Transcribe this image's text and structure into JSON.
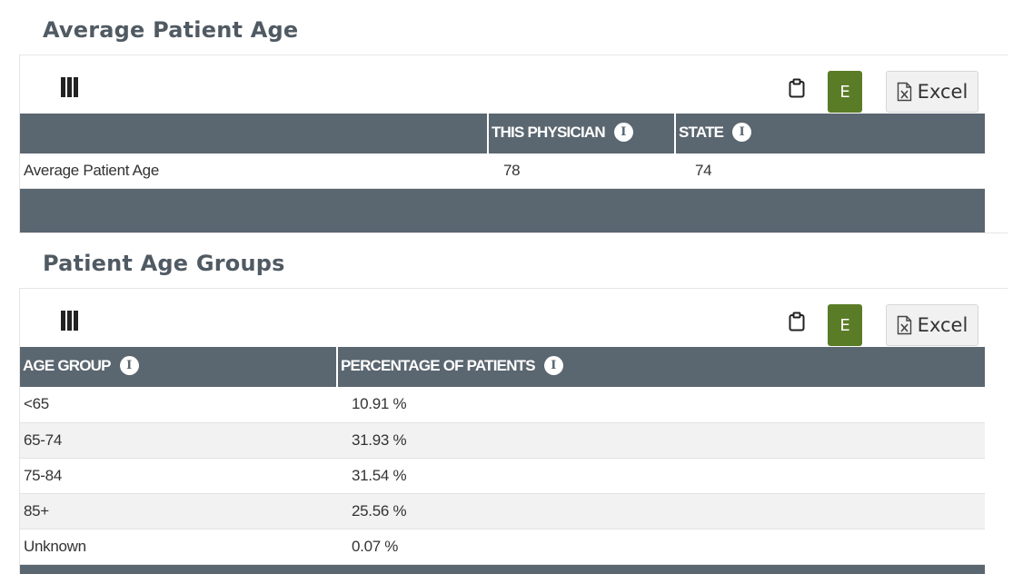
{
  "sections": [
    {
      "title": "Average Patient Age",
      "toolbar": {
        "e_label": "E",
        "excel_label": "Excel"
      },
      "columns": [
        "",
        "THIS PHYSICIAN",
        "STATE"
      ],
      "rows": [
        {
          "label": "Average Patient Age",
          "this_physician": "78",
          "state": "74"
        }
      ]
    },
    {
      "title": "Patient Age Groups",
      "toolbar": {
        "e_label": "E",
        "excel_label": "Excel"
      },
      "columns": [
        "AGE GROUP",
        "PERCENTAGE OF PATIENTS"
      ],
      "rows": [
        {
          "age_group": "<65",
          "percentage": "10.91 %"
        },
        {
          "age_group": "65-74",
          "percentage": "31.93 %"
        },
        {
          "age_group": "75-84",
          "percentage": "31.54 %"
        },
        {
          "age_group": "85+",
          "percentage": "25.56 %"
        },
        {
          "age_group": "Unknown",
          "percentage": "0.07 %"
        }
      ]
    }
  ],
  "icons": {
    "columns": "column-toggle-icon",
    "clipboard": "clipboard-icon",
    "excel": "excel-file-icon",
    "info": "info-icon"
  },
  "colors": {
    "header_bg": "#5a6670",
    "e_button": "#5b7c27",
    "title": "#505a63"
  }
}
